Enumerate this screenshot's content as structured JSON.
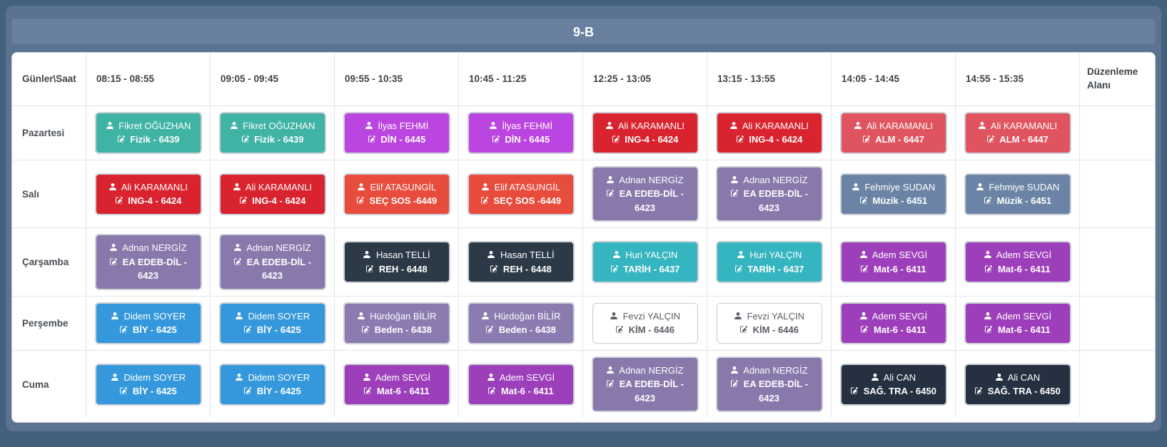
{
  "title": "9-B",
  "colors": {
    "page_bg": "#43607e",
    "panel_bg": "#5b7391",
    "titlebar_bg": "#68809d",
    "card_bg": "#ffffff",
    "grid_line": "#e3e5ea",
    "header_text": "#3f4449",
    "badge_halo": "#ccd0d7"
  },
  "icons": {
    "teacher": "user-icon",
    "course": "edit-icon"
  },
  "table": {
    "corner_header": "Günler\\Saat",
    "time_headers": [
      "08:15 - 08:55",
      "09:05 - 09:45",
      "09:55 - 10:35",
      "10:45 - 11:25",
      "12:25 - 13:05",
      "13:15 - 13:55",
      "14:05 - 14:45",
      "14:55 - 15:35"
    ],
    "edit_column_header": "Düzenleme Alanı",
    "days": [
      {
        "label": "Pazartesi",
        "lessons": [
          {
            "teacher": "Fikret OĞUZHAN",
            "course": "Fizik - 6439",
            "bg": "#3fb3a4",
            "fg": "#ffffff"
          },
          {
            "teacher": "Fikret OĞUZHAN",
            "course": "Fizik - 6439",
            "bg": "#3fb3a4",
            "fg": "#ffffff"
          },
          {
            "teacher": "İlyas FEHMİ",
            "course": "DİN - 6445",
            "bg": "#bb45e0",
            "fg": "#ffffff"
          },
          {
            "teacher": "İlyas FEHMİ",
            "course": "DİN - 6445",
            "bg": "#bb45e0",
            "fg": "#ffffff"
          },
          {
            "teacher": "Ali KARAMANLI",
            "course": "ING-4 - 6424",
            "bg": "#d9232e",
            "fg": "#ffffff"
          },
          {
            "teacher": "Ali KARAMANLI",
            "course": "ING-4 - 6424",
            "bg": "#d9232e",
            "fg": "#ffffff"
          },
          {
            "teacher": "Ali KARAMANLI",
            "course": "ALM - 6447",
            "bg": "#e0545f",
            "fg": "#ffffff"
          },
          {
            "teacher": "Ali KARAMANLI",
            "course": "ALM - 6447",
            "bg": "#e0545f",
            "fg": "#ffffff"
          }
        ]
      },
      {
        "label": "Salı",
        "lessons": [
          {
            "teacher": "Ali KARAMANLI",
            "course": "ING-4 - 6424",
            "bg": "#d9232e",
            "fg": "#ffffff"
          },
          {
            "teacher": "Ali KARAMANLI",
            "course": "ING-4 - 6424",
            "bg": "#d9232e",
            "fg": "#ffffff"
          },
          {
            "teacher": "Elif ATASUNGİL",
            "course": "SEÇ SOS  -6449",
            "bg": "#e74c3c",
            "fg": "#ffffff"
          },
          {
            "teacher": "Elif ATASUNGİL",
            "course": "SEÇ SOS  -6449",
            "bg": "#e74c3c",
            "fg": "#ffffff"
          },
          {
            "teacher": "Adnan NERGİZ",
            "course": "EA EDEB-DİL - 6423",
            "bg": "#8878ab",
            "fg": "#ffffff"
          },
          {
            "teacher": "Adnan NERGİZ",
            "course": "EA EDEB-DİL - 6423",
            "bg": "#8878ab",
            "fg": "#ffffff"
          },
          {
            "teacher": "Fehmiye SUDAN",
            "course": "Müzik - 6451",
            "bg": "#6b84a5",
            "fg": "#ffffff"
          },
          {
            "teacher": "Fehmiye SUDAN",
            "course": "Müzik - 6451",
            "bg": "#6b84a5",
            "fg": "#ffffff"
          }
        ]
      },
      {
        "label": "Çarşamba",
        "lessons": [
          {
            "teacher": "Adnan NERGİZ",
            "course": "EA EDEB-DİL - 6423",
            "bg": "#8878ab",
            "fg": "#ffffff"
          },
          {
            "teacher": "Adnan NERGİZ",
            "course": "EA EDEB-DİL - 6423",
            "bg": "#8878ab",
            "fg": "#ffffff"
          },
          {
            "teacher": "Hasan TELLİ",
            "course": "REH - 6448",
            "bg": "#2c3a48",
            "fg": "#ffffff"
          },
          {
            "teacher": "Hasan TELLİ",
            "course": "REH - 6448",
            "bg": "#2c3a48",
            "fg": "#ffffff"
          },
          {
            "teacher": "Huri YALÇIN",
            "course": "TARİH - 6437",
            "bg": "#35b5bf",
            "fg": "#ffffff"
          },
          {
            "teacher": "Huri YALÇIN",
            "course": "TARİH - 6437",
            "bg": "#35b5bf",
            "fg": "#ffffff"
          },
          {
            "teacher": "Adem SEVGİ",
            "course": "Mat-6 - 6411",
            "bg": "#9d3fba",
            "fg": "#ffffff"
          },
          {
            "teacher": "Adem SEVGİ",
            "course": "Mat-6 - 6411",
            "bg": "#9d3fba",
            "fg": "#ffffff"
          }
        ]
      },
      {
        "label": "Perşembe",
        "lessons": [
          {
            "teacher": "Didem SOYER",
            "course": "BİY - 6425",
            "bg": "#3598dc",
            "fg": "#ffffff"
          },
          {
            "teacher": "Didem SOYER",
            "course": "BİY - 6425",
            "bg": "#3598dc",
            "fg": "#ffffff"
          },
          {
            "teacher": "Hürdoğan BİLİR",
            "course": "Beden - 6438",
            "bg": "#8c7bb0",
            "fg": "#ffffff"
          },
          {
            "teacher": "Hürdoğan BİLİR",
            "course": "Beden - 6438",
            "bg": "#8c7bb0",
            "fg": "#ffffff"
          },
          {
            "teacher": "Fevzi YALÇIN",
            "course": "KİM - 6446",
            "bg": "#ffffff",
            "fg": "#5a5f66",
            "variant": "outline"
          },
          {
            "teacher": "Fevzi YALÇIN",
            "course": "KİM - 6446",
            "bg": "#ffffff",
            "fg": "#5a5f66",
            "variant": "outline"
          },
          {
            "teacher": "Adem SEVGİ",
            "course": "Mat-6 - 6411",
            "bg": "#9d3fba",
            "fg": "#ffffff"
          },
          {
            "teacher": "Adem SEVGİ",
            "course": "Mat-6 - 6411",
            "bg": "#9d3fba",
            "fg": "#ffffff"
          }
        ]
      },
      {
        "label": "Cuma",
        "lessons": [
          {
            "teacher": "Didem SOYER",
            "course": "BİY - 6425",
            "bg": "#3598dc",
            "fg": "#ffffff"
          },
          {
            "teacher": "Didem SOYER",
            "course": "BİY - 6425",
            "bg": "#3598dc",
            "fg": "#ffffff"
          },
          {
            "teacher": "Adem SEVGİ",
            "course": "Mat-6 - 6411",
            "bg": "#9d3fba",
            "fg": "#ffffff"
          },
          {
            "teacher": "Adem SEVGİ",
            "course": "Mat-6 - 6411",
            "bg": "#9d3fba",
            "fg": "#ffffff"
          },
          {
            "teacher": "Adnan NERGİZ",
            "course": "EA EDEB-DİL - 6423",
            "bg": "#8878ab",
            "fg": "#ffffff"
          },
          {
            "teacher": "Adnan NERGİZ",
            "course": "EA EDEB-DİL - 6423",
            "bg": "#8878ab",
            "fg": "#ffffff"
          },
          {
            "teacher": "Ali CAN",
            "course": "SAĞ. TRA - 6450",
            "bg": "#253140",
            "fg": "#ffffff"
          },
          {
            "teacher": "Ali CAN",
            "course": "SAĞ. TRA - 6450",
            "bg": "#253140",
            "fg": "#ffffff"
          }
        ]
      }
    ]
  }
}
